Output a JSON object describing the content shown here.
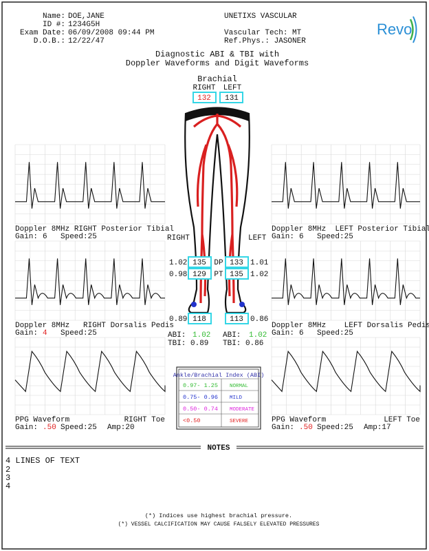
{
  "header": {
    "patient": [
      {
        "label": "Name:",
        "value": "DOE,JANE"
      },
      {
        "label": "ID #:",
        "value": "1234G5H"
      },
      {
        "label": "Exam Date:",
        "value": "06/09/2008 09:44 PM"
      },
      {
        "label": "D.O.B.:",
        "value": "12/22/47"
      }
    ],
    "lab": [
      "UNETIXS VASCULAR",
      "Vascular Tech: MT",
      "Ref.Phys.: JASONER"
    ],
    "logo": "Revo"
  },
  "title": [
    "Diagnostic ABI & TBI with",
    "Doppler Waveforms and Digit Waveforms"
  ],
  "brachial": {
    "title": "Brachial",
    "right_label": "RIGHT",
    "left_label": "LEFT",
    "right": "132",
    "left": "131"
  },
  "sides": {
    "right": "RIGHT",
    "left": "LEFT"
  },
  "pressures": [
    {
      "right_index": "1.02",
      "right": "135",
      "site": "DP",
      "left": "133",
      "left_index": "1.01"
    },
    {
      "right_index": "0.98",
      "right": "129",
      "site": "PT",
      "left": "135",
      "left_index": "1.02"
    },
    {
      "right_index": "0.89",
      "right": "118",
      "left": "113",
      "left_index": "0.86"
    }
  ],
  "indices": {
    "right": {
      "abi_label": "ABI:",
      "abi": "1.02",
      "tbi": "TBI: 0.89"
    },
    "left": {
      "abi_label": "ABI:",
      "abi": "1.02",
      "tbi": "TBI: 0.86"
    }
  },
  "panels": [
    {
      "caption": "Doppler 8MHz RIGHT Posterior Tibial",
      "gain_label": "Gain:",
      "gain": "6",
      "speed": "Speed:25"
    },
    {
      "caption": "Doppler 8MHz   RIGHT Dorsalis Pedis",
      "gain_label": "Gain:",
      "gain": "4",
      "speed": "Speed:25"
    },
    {
      "caption": "PPG Waveform",
      "site": "RIGHT Toe",
      "gain_label": "Gain:",
      "gain": ".50",
      "speed": "Speed:25",
      "amp": "Amp:20"
    },
    {
      "caption": "Doppler 8MHz  LEFT Posterior Tibial",
      "gain_label": "Gain:",
      "gain": "6",
      "speed": "Speed:25"
    },
    {
      "caption": "Doppler 8MHz    LEFT Dorsalis Pedis",
      "gain_label": "Gain:",
      "gain": "6",
      "speed": "Speed:25"
    },
    {
      "caption": "PPG Waveform",
      "site": "LEFT Toe",
      "gain_label": "Gain:",
      "gain": ".50",
      "speed": "Speed:25",
      "amp": "Amp:17"
    }
  ],
  "abi_table": {
    "title": "Ankle/Brachial Index (ABI)",
    "rows": [
      [
        "0.97- 1.25",
        "NORMAL"
      ],
      [
        "0.75- 0.96",
        "MILD"
      ],
      [
        "0.50- 0.74",
        "MODERATE"
      ],
      [
        "<0.50",
        "SEVERE"
      ]
    ]
  },
  "notes": {
    "title": "NOTES",
    "lines": [
      "4 LINES OF TEXT",
      "2",
      "3",
      "4"
    ]
  },
  "footer": [
    "(*) Indices use highest brachial pressure.",
    "(*) VESSEL CALCIFICATION MAY CAUSE FALSELY ELEVATED PRESSURES"
  ]
}
